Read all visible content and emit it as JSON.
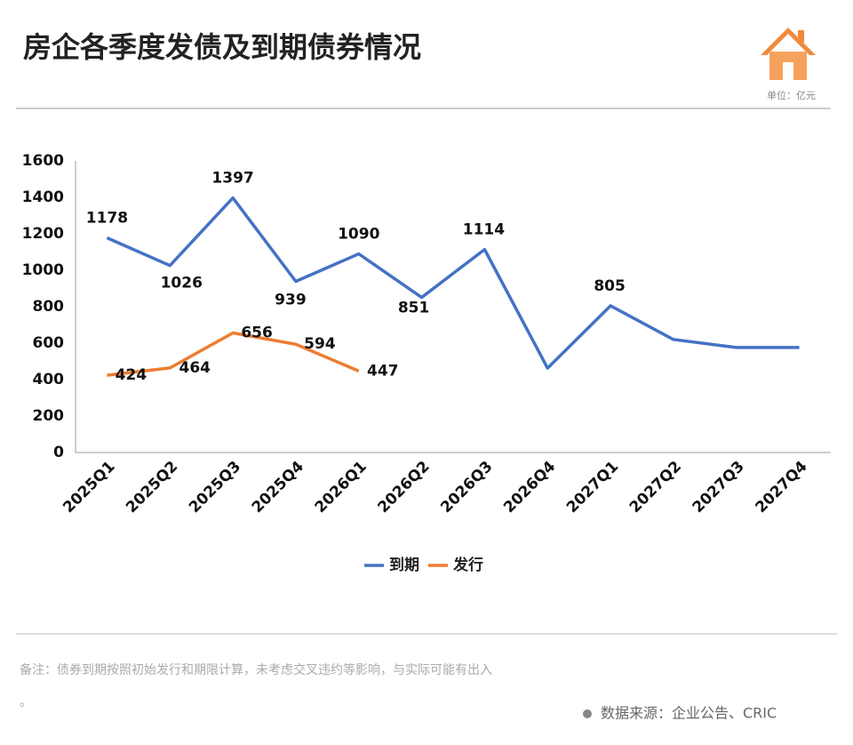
{
  "header": {
    "title": "房企各季度发债及到期债券情况",
    "unit": "单位：亿元"
  },
  "chart_data": {
    "type": "line",
    "categories": [
      "2025Q1",
      "2025Q2",
      "2025Q3",
      "2025Q4",
      "2026Q1",
      "2026Q2",
      "2026Q3",
      "2026Q4",
      "2027Q1",
      "2027Q2",
      "2027Q3",
      "2027Q4"
    ],
    "series": [
      {
        "name": "到期",
        "color": "#4472c4",
        "values": [
          1178,
          1026,
          1397,
          939,
          1090,
          851,
          1114,
          463,
          805,
          620,
          576,
          576
        ]
      },
      {
        "name": "发行",
        "color": "#ed7d31",
        "values": [
          424,
          464,
          656,
          594,
          447,
          null,
          null,
          null,
          null,
          null,
          null,
          null
        ]
      }
    ],
    "ylim": [
      0,
      1600
    ],
    "yticks": [
      0,
      200,
      400,
      600,
      800,
      1000,
      1200,
      1400,
      1600
    ],
    "grid": false,
    "legend": "bottom"
  },
  "footer": {
    "note": "备注：债券到期按照初始发行和期限计算，未考虑交叉违约等影响，与实际可能有出入",
    "note_end": "。",
    "source": "数据来源：企业公告、CRIC"
  }
}
